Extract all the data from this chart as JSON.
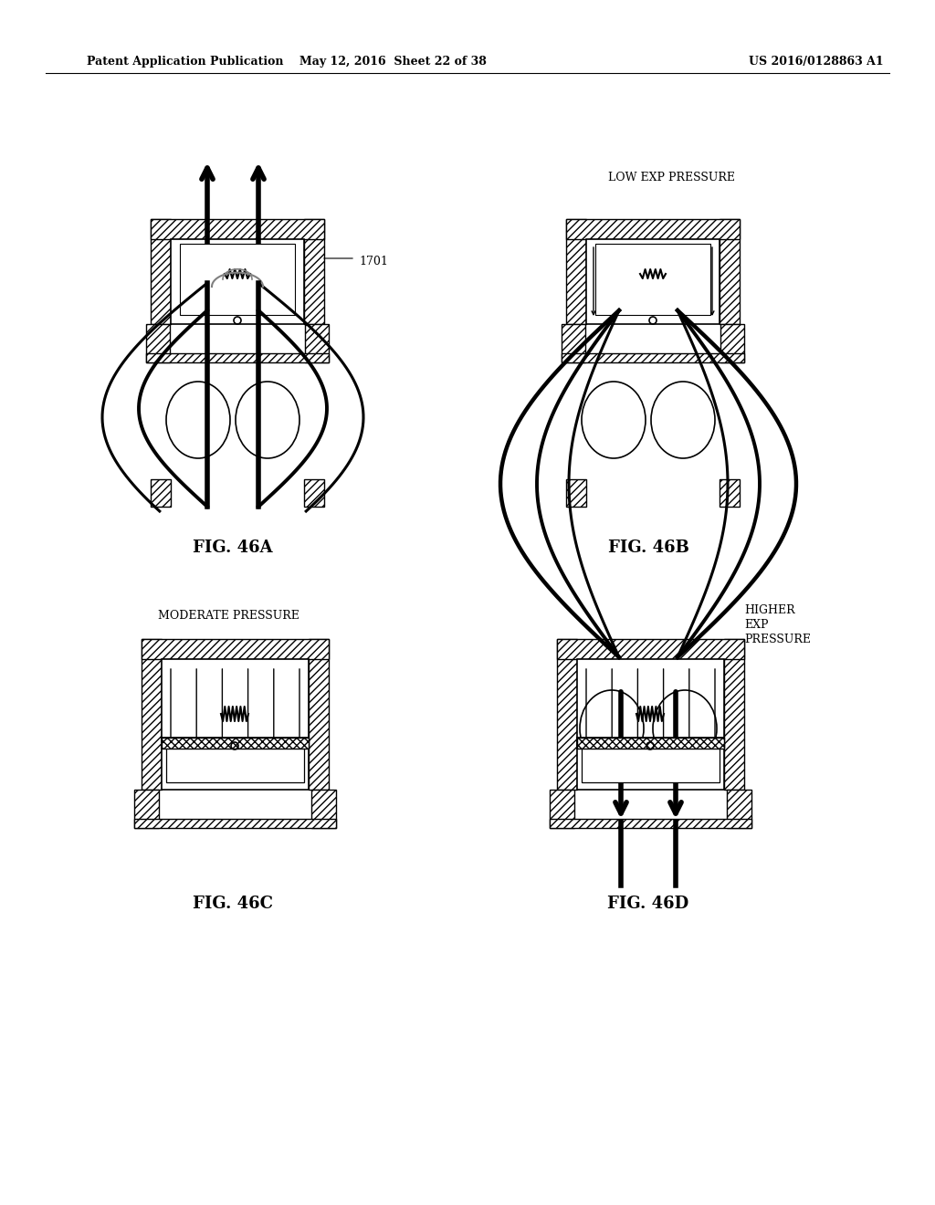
{
  "header_left": "Patent Application Publication",
  "header_mid": "May 12, 2016  Sheet 22 of 38",
  "header_right": "US 2016/0128863 A1",
  "fig_labels": [
    "FIG. 46A",
    "FIG. 46B",
    "FIG. 46C",
    "FIG. 46D"
  ],
  "fig46b_label": "LOW EXP PRESSURE",
  "fig46c_label": "MODERATE PRESSURE",
  "fig46d_label": "HIGHER\nEXP\nPRESSURE",
  "ref_1701": "1701",
  "background": "#ffffff",
  "line_color": "#000000"
}
